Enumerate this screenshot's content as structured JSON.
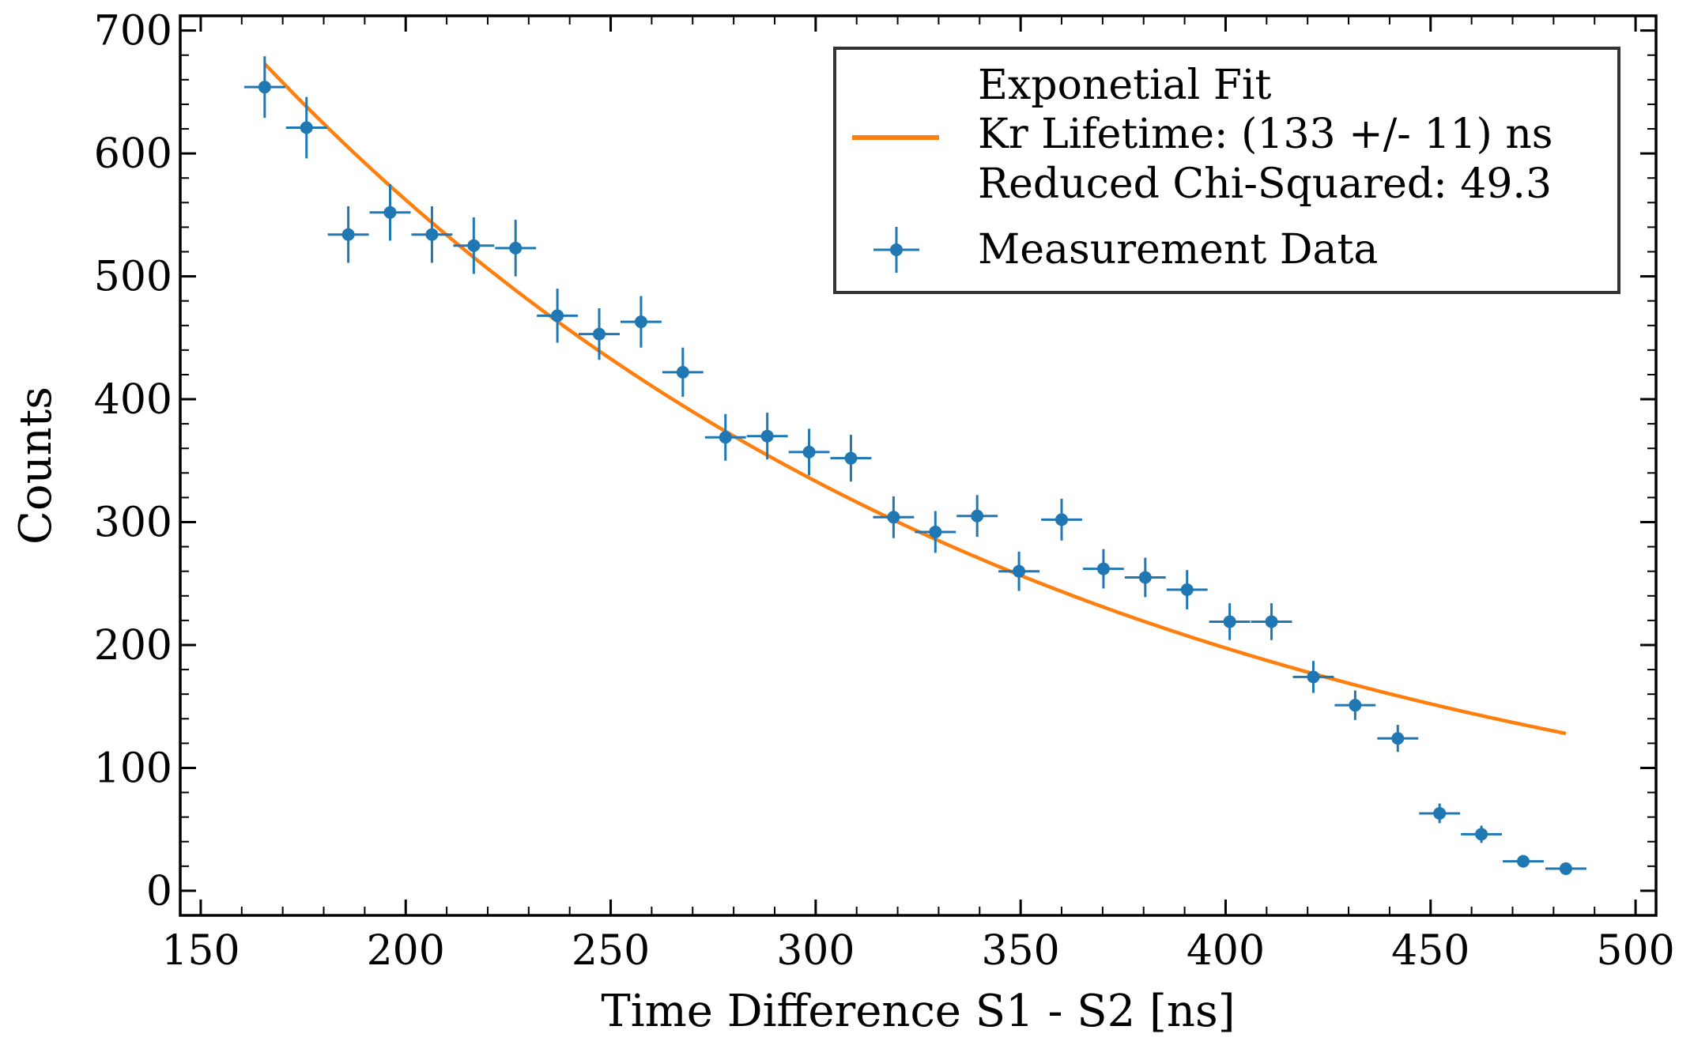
{
  "chart_data": {
    "type": "scatter",
    "title": "",
    "xlabel": "Time Difference S1 - S2 [ns]",
    "ylabel": "Counts",
    "xlim": [
      145,
      505
    ],
    "ylim": [
      -20,
      712
    ],
    "xticks": [
      150,
      200,
      250,
      300,
      350,
      400,
      450,
      500
    ],
    "yticks": [
      0,
      100,
      200,
      300,
      400,
      500,
      600,
      700
    ],
    "grid": false,
    "legend_position": "top-right",
    "colors": {
      "data": "#1f77b4",
      "fit": "#ff7f0e"
    },
    "series": [
      {
        "name": "Measurement Data",
        "kind": "errorbar",
        "x_err": 5,
        "points": [
          {
            "x": 165.6,
            "y": 654,
            "yerr": 25
          },
          {
            "x": 175.8,
            "y": 621,
            "yerr": 25
          },
          {
            "x": 186.0,
            "y": 534,
            "yerr": 23
          },
          {
            "x": 196.2,
            "y": 552,
            "yerr": 23
          },
          {
            "x": 206.4,
            "y": 534,
            "yerr": 23
          },
          {
            "x": 216.6,
            "y": 525,
            "yerr": 23
          },
          {
            "x": 226.8,
            "y": 523,
            "yerr": 23
          },
          {
            "x": 237.0,
            "y": 468,
            "yerr": 22
          },
          {
            "x": 247.2,
            "y": 453,
            "yerr": 21
          },
          {
            "x": 257.4,
            "y": 463,
            "yerr": 21
          },
          {
            "x": 267.6,
            "y": 422,
            "yerr": 20
          },
          {
            "x": 278.0,
            "y": 369,
            "yerr": 19
          },
          {
            "x": 288.2,
            "y": 370,
            "yerr": 19
          },
          {
            "x": 298.4,
            "y": 357,
            "yerr": 19
          },
          {
            "x": 308.6,
            "y": 352,
            "yerr": 19
          },
          {
            "x": 319.0,
            "y": 304,
            "yerr": 17
          },
          {
            "x": 329.2,
            "y": 292,
            "yerr": 17
          },
          {
            "x": 339.4,
            "y": 305,
            "yerr": 17
          },
          {
            "x": 349.6,
            "y": 260,
            "yerr": 16
          },
          {
            "x": 360.0,
            "y": 302,
            "yerr": 17
          },
          {
            "x": 370.2,
            "y": 262,
            "yerr": 16
          },
          {
            "x": 380.4,
            "y": 255,
            "yerr": 16
          },
          {
            "x": 390.6,
            "y": 245,
            "yerr": 16
          },
          {
            "x": 401.0,
            "y": 219,
            "yerr": 15
          },
          {
            "x": 411.2,
            "y": 219,
            "yerr": 15
          },
          {
            "x": 421.4,
            "y": 174,
            "yerr": 13
          },
          {
            "x": 431.6,
            "y": 151,
            "yerr": 12
          },
          {
            "x": 442.0,
            "y": 124,
            "yerr": 11
          },
          {
            "x": 452.2,
            "y": 63,
            "yerr": 8
          },
          {
            "x": 462.4,
            "y": 46,
            "yerr": 7
          },
          {
            "x": 472.6,
            "y": 24,
            "yerr": 5
          },
          {
            "x": 483.0,
            "y": 18,
            "yerr": 4
          }
        ]
      },
      {
        "name": "Exponetial Fit",
        "kind": "line",
        "model": "exponential",
        "x_range": [
          165.6,
          483.0
        ],
        "y_range": [
          673,
          128
        ]
      }
    ],
    "legend": {
      "fit_lines": [
        "Exponetial Fit",
        "Kr Lifetime: (133 +/- 11) ns",
        "Reduced Chi-Squared: 49.3"
      ],
      "data_label": "Measurement Data"
    }
  }
}
